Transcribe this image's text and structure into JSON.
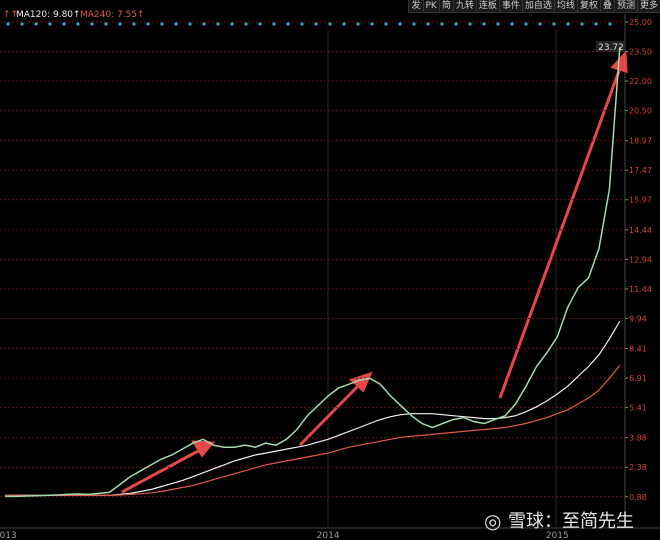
{
  "toolbar": [
    "发",
    "PK",
    "简",
    "九转",
    "连板",
    "事件",
    "加自选",
    "均线",
    "复权",
    "叠",
    "预测",
    "更多"
  ],
  "watermark": "雪球：至简先生",
  "chart_data": {
    "type": "line",
    "categories": [
      "2013",
      null,
      null,
      null,
      null,
      null,
      null,
      null,
      null,
      null,
      null,
      null,
      null,
      null,
      null,
      null,
      null,
      null,
      null,
      null,
      null,
      null,
      null,
      null,
      null,
      null,
      null,
      null,
      null,
      null,
      null,
      "2014",
      null,
      null,
      null,
      null,
      null,
      null,
      null,
      null,
      null,
      null,
      null,
      null,
      null,
      null,
      null,
      null,
      null,
      null,
      null,
      null,
      null,
      "2015",
      null,
      null,
      null,
      null,
      null,
      null
    ],
    "values": [
      0.9,
      0.9,
      0.92,
      0.93,
      0.95,
      0.97,
      1.0,
      1.02,
      1.0,
      1.05,
      1.1,
      1.5,
      1.9,
      2.2,
      2.5,
      2.8,
      3.0,
      3.3,
      3.6,
      3.8,
      3.5,
      3.4,
      3.4,
      3.5,
      3.4,
      3.6,
      3.5,
      3.8,
      4.3,
      5.0,
      5.5,
      6.0,
      6.4,
      6.6,
      6.8,
      6.9,
      6.6,
      6.0,
      5.5,
      5.0,
      4.6,
      4.4,
      4.6,
      4.8,
      4.9,
      4.7,
      4.6,
      4.8,
      5.0,
      5.6,
      6.5,
      7.5,
      8.2,
      9.0,
      10.5,
      11.5,
      12.0,
      13.5,
      16.5,
      23.72
    ],
    "color": "#a8d8b0",
    "series": [
      {
        "name": "MA120: 9.80↑",
        "color": "#f0f0f0",
        "values": [
          0.95,
          0.95,
          0.95,
          0.95,
          0.95,
          0.95,
          0.95,
          0.95,
          0.95,
          0.95,
          0.95,
          1.0,
          1.05,
          1.15,
          1.25,
          1.4,
          1.55,
          1.7,
          1.9,
          2.1,
          2.3,
          2.5,
          2.7,
          2.85,
          3.0,
          3.1,
          3.2,
          3.3,
          3.4,
          3.5,
          3.65,
          3.8,
          4.0,
          4.2,
          4.4,
          4.6,
          4.8,
          4.95,
          5.05,
          5.1,
          5.1,
          5.1,
          5.05,
          5.0,
          4.95,
          4.9,
          4.85,
          4.85,
          4.9,
          5.0,
          5.2,
          5.45,
          5.75,
          6.1,
          6.5,
          7.0,
          7.5,
          8.1,
          8.9,
          9.8
        ]
      },
      {
        "name": "MA240: 7.55↑",
        "color": "#e05a4a",
        "values": [
          0.95,
          0.95,
          0.95,
          0.95,
          0.95,
          0.95,
          0.95,
          0.95,
          0.95,
          0.95,
          0.95,
          0.97,
          1.0,
          1.03,
          1.08,
          1.15,
          1.25,
          1.35,
          1.45,
          1.6,
          1.75,
          1.9,
          2.05,
          2.2,
          2.35,
          2.5,
          2.6,
          2.7,
          2.8,
          2.9,
          3.0,
          3.1,
          3.25,
          3.4,
          3.5,
          3.6,
          3.7,
          3.8,
          3.9,
          3.95,
          4.0,
          4.05,
          4.1,
          4.15,
          4.2,
          4.25,
          4.3,
          4.35,
          4.4,
          4.5,
          4.6,
          4.75,
          4.9,
          5.1,
          5.3,
          5.6,
          5.9,
          6.3,
          6.9,
          7.55
        ]
      }
    ],
    "ylim": [
      -0.3,
      25
    ],
    "yticks": [
      0.88,
      2.38,
      3.88,
      5.41,
      6.91,
      8.41,
      9.94,
      11.44,
      12.94,
      14.44,
      15.97,
      17.47,
      18.97,
      {
        "value": 20.5,
        "label": "20.50"
      },
      {
        "value": 22,
        "label": "22.00"
      },
      {
        "value": 23.5,
        "label": "23.50"
      },
      {
        "value": 25,
        "label": "25.00"
      }
    ],
    "grid": true
  }
}
